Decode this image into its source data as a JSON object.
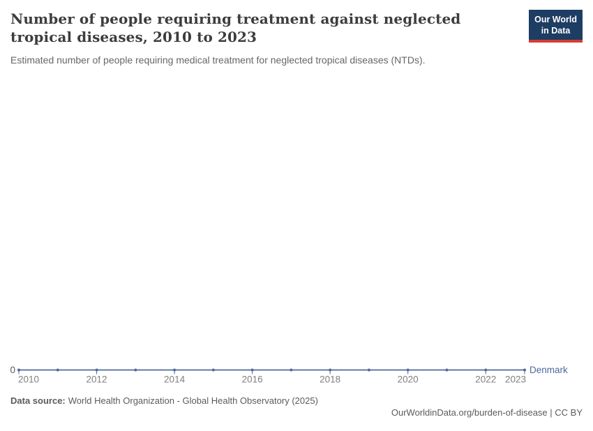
{
  "header": {
    "title": "Number of people requiring treatment against neglected tropical diseases, 2010 to 2023",
    "subtitle": "Estimated number of people requiring medical treatment for neglected tropical diseases (NTDs)."
  },
  "logo": {
    "line1": "Our World",
    "line2": "in Data",
    "bg_color": "#1d3d63",
    "accent_color": "#d73c32"
  },
  "chart_data": {
    "type": "line",
    "title": "Number of people requiring treatment against neglected tropical diseases, 2010 to 2023",
    "subtitle": "Estimated number of people requiring medical treatment for neglected tropical diseases (NTDs).",
    "x": [
      2010,
      2011,
      2012,
      2013,
      2014,
      2015,
      2016,
      2017,
      2018,
      2019,
      2020,
      2021,
      2022,
      2023
    ],
    "series": [
      {
        "name": "Denmark",
        "color": "#4C6A9C",
        "values": [
          0,
          0,
          0,
          0,
          0,
          0,
          0,
          0,
          0,
          0,
          0,
          0,
          0,
          0
        ]
      }
    ],
    "x_tick_labels": [
      "2010",
      "2012",
      "2014",
      "2016",
      "2018",
      "2020",
      "2022",
      "2023"
    ],
    "y_tick_labels": [
      "0"
    ],
    "ylim": [
      0,
      0
    ],
    "grid": false,
    "legend_position": "end-of-line",
    "axis_label_color": "#808080",
    "y_label_color": "#5b5b5b"
  },
  "footer": {
    "source_label": "Data source:",
    "source_value": "World Health Organization - Global Health Observatory (2025)",
    "url": "OurWorldinData.org/burden-of-disease",
    "separator": " | ",
    "license": "CC BY"
  }
}
